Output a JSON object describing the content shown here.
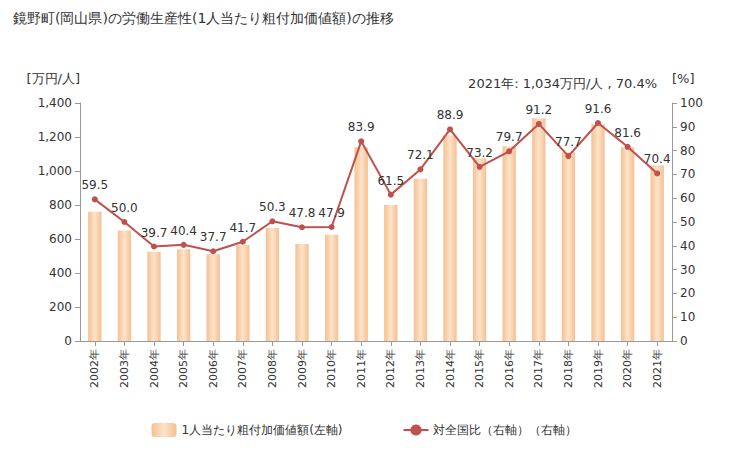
{
  "chart_data": {
    "type": "bar",
    "title": "鏡野町(岡山県)の労働生産性(1人当たり粗付加価値額)の推移",
    "annotation": "2021年: 1,034万円/人 , 70.4%",
    "y_label": "[万円/人]",
    "y2_label": "[%]",
    "categories": [
      "2002年",
      "2003年",
      "2004年",
      "2005年",
      "2006年",
      "2007年",
      "2008年",
      "2009年",
      "2010年",
      "2011年",
      "2012年",
      "2013年",
      "2014年",
      "2015年",
      "2016年",
      "2017年",
      "2018年",
      "2019年",
      "2020年",
      "2021年"
    ],
    "series": [
      {
        "name": "1人当たり粗付加価値額(左軸)",
        "type": "bar",
        "color": "#f5c08f",
        "values": [
          760,
          650,
          525,
          540,
          510,
          565,
          665,
          570,
          625,
          1140,
          800,
          955,
          1210,
          1075,
          1145,
          1310,
          1110,
          1275,
          1140,
          1034
        ]
      },
      {
        "name": "対全国比（右軸）（右軸）",
        "type": "line",
        "axis": "y2",
        "color": "#c0504d",
        "marker": "circle",
        "data_labels": true,
        "values": [
          59.5,
          50.0,
          39.7,
          40.4,
          37.7,
          41.7,
          50.3,
          47.8,
          47.9,
          83.9,
          61.5,
          72.1,
          88.9,
          73.2,
          79.7,
          91.2,
          77.7,
          91.6,
          81.6,
          70.4
        ],
        "value_labels": [
          "59.5",
          "50.0",
          "39.7",
          "40.4",
          "37.7",
          "41.7",
          "50.3",
          "47.8",
          "47.9",
          "83.9",
          "61.5",
          "72.1",
          "88.9",
          "73.2",
          "79.7",
          "91.2",
          "77.7",
          "91.6",
          "81.6",
          "70.4"
        ]
      }
    ],
    "ylim": [
      0,
      1400
    ],
    "yticks": [
      0,
      200,
      400,
      600,
      800,
      {
        "value": 1000,
        "label": "1,000"
      },
      {
        "value": 1200,
        "label": "1,200"
      },
      {
        "value": 1400,
        "label": "1,400"
      }
    ],
    "y2lim": [
      0,
      100
    ],
    "y2ticks": [
      0,
      10,
      20,
      30,
      40,
      50,
      60,
      70,
      80,
      90,
      100
    ],
    "grid": false,
    "legend": "bottom"
  }
}
